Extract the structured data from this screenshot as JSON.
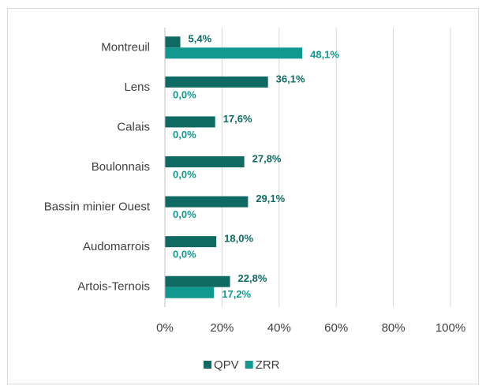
{
  "chart_data": {
    "type": "hbar",
    "categories": [
      "Montreuil",
      "Lens",
      "Calais",
      "Boulonnais",
      "Bassin minier Ouest",
      "Audomarrois",
      "Artois-Ternois"
    ],
    "series": [
      {
        "name": "QPV",
        "color": "#0e6a63",
        "values": [
          5.4,
          36.1,
          17.6,
          27.8,
          29.1,
          18.0,
          22.8
        ],
        "value_labels": [
          "5,4%",
          "36,1%",
          "17,6%",
          "27,8%",
          "29,1%",
          "18,0%",
          "22,8%"
        ]
      },
      {
        "name": "ZRR",
        "color": "#12998f",
        "values": [
          48.1,
          0.0,
          0.0,
          0.0,
          0.0,
          0.0,
          17.2
        ],
        "value_labels": [
          "48,1%",
          "0,0%",
          "0,0%",
          "0,0%",
          "0,0%",
          "0,0%",
          "17,2%"
        ]
      }
    ],
    "xlim": [
      0,
      100
    ],
    "xticks": [
      {
        "value": 0,
        "label": "0%"
      },
      {
        "value": 20,
        "label": "20%"
      },
      {
        "value": 40,
        "label": "40%"
      },
      {
        "value": 60,
        "label": "60%"
      },
      {
        "value": 80,
        "label": "80%"
      },
      {
        "value": 100,
        "label": "100%"
      }
    ],
    "grid": true,
    "legend": "bottom"
  }
}
